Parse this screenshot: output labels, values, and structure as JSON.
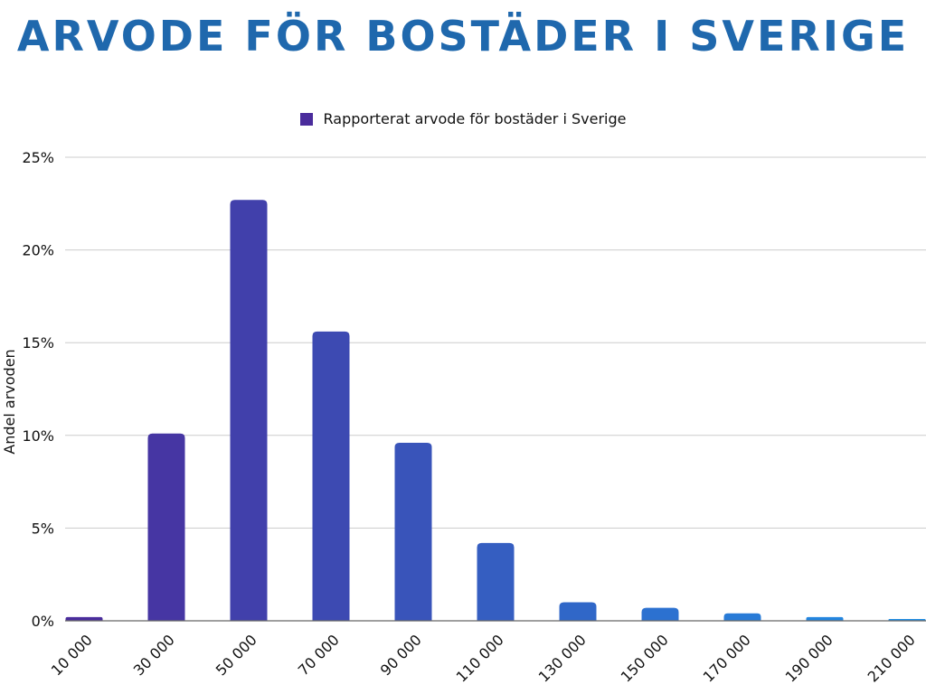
{
  "title": "ARVODE FÖR BOSTÄDER I SVERIGE",
  "colors": {
    "title": "#1f68ad",
    "legend": "#4a2c9c",
    "bar_start": "#4a2c9c",
    "bar_end": "#1f8fe6",
    "grid": "#cccccc",
    "axis": "#666666"
  },
  "chart_data": {
    "type": "bar",
    "title": "ARVODE FÖR BOSTÄDER I SVERIGE",
    "xlabel": "",
    "ylabel": "Andel arvoden",
    "categories": [
      "10 000",
      "30 000",
      "50 000",
      "70 000",
      "90 000",
      "110 000",
      "130 000",
      "150 000",
      "170 000",
      "190 000",
      "210 000"
    ],
    "series": [
      {
        "name": "Rapporterat arvode för bostäder i Sverige",
        "values": [
          0.2,
          10.1,
          22.7,
          15.6,
          9.6,
          4.2,
          1.0,
          0.7,
          0.4,
          0.2,
          0.1
        ]
      }
    ],
    "ylim": [
      0,
      25
    ],
    "yticks": [
      0,
      5,
      10,
      15,
      20,
      25
    ],
    "ytick_labels": [
      "0%",
      "5%",
      "10%",
      "15%",
      "20%",
      "25%"
    ],
    "grid": true,
    "legend_position": "top-center"
  }
}
